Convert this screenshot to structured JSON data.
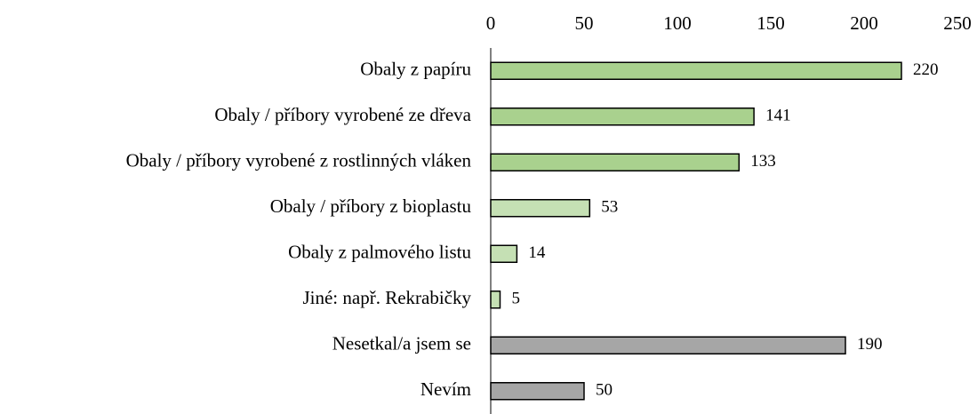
{
  "chart_data": {
    "type": "bar",
    "orientation": "horizontal",
    "categories": [
      "Obaly z papíru",
      "Obaly / příbory vyrobené ze dřeva",
      "Obaly / příbory vyrobené z rostlinných vláken",
      "Obaly / příbory z bioplastu",
      "Obaly z palmového listu",
      "Jiné: např. Rekrabičky",
      "Nesetkal/a jsem se",
      "Nevím"
    ],
    "values": [
      220,
      141,
      133,
      53,
      14,
      5,
      190,
      50
    ],
    "colors": [
      "#a9d18e",
      "#a9d18e",
      "#a9d18e",
      "#c5e0b4",
      "#c5e0b4",
      "#c5e0b4",
      "#a6a6a6",
      "#a6a6a6"
    ],
    "xlim": [
      0,
      250
    ],
    "xticks": [
      0,
      50,
      100,
      150,
      200,
      250
    ],
    "grid": false
  }
}
